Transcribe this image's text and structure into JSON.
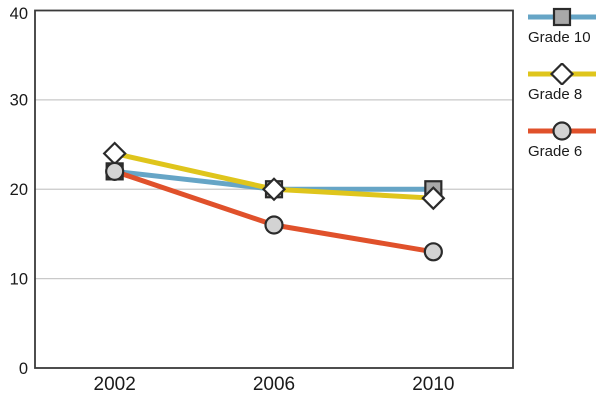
{
  "chart_data": {
    "type": "line",
    "title": "",
    "xlabel": "",
    "ylabel": "",
    "categories": [
      "2002",
      "2006",
      "2010"
    ],
    "series": [
      {
        "name": "Grade 10",
        "values": [
          22,
          20,
          20
        ],
        "color": "#66A5C6",
        "marker": "square",
        "marker_fill": "#A8A8A8"
      },
      {
        "name": "Grade 8",
        "values": [
          24,
          20,
          19
        ],
        "color": "#DFC51C",
        "marker": "diamond",
        "marker_fill": "#FFFFFF"
      },
      {
        "name": "Grade 6",
        "values": [
          22,
          16,
          13
        ],
        "color": "#E0512B",
        "marker": "circle",
        "marker_fill": "#D3D3D3"
      }
    ],
    "ylim": [
      0,
      40
    ],
    "yticks": [
      0,
      10,
      20,
      30,
      40
    ],
    "grid": true,
    "legend_position": "right"
  },
  "colors": {
    "background": "#FFFFFF",
    "grid": "#C9C9C9",
    "border": "#3A3A3A",
    "text": "#1A1A1A",
    "marker_stroke": "#2B2B2B"
  }
}
